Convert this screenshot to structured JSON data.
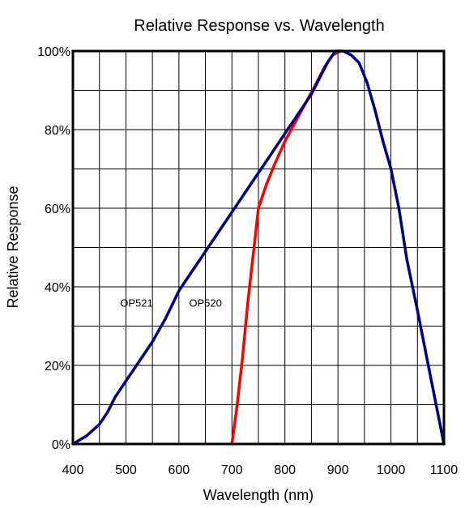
{
  "chart_data": {
    "type": "line",
    "title": "Relative Response vs. Wavelength",
    "xlabel": "Wavelength (nm)",
    "ylabel": "Relative Response",
    "xlim": [
      400,
      1100
    ],
    "ylim": [
      0,
      100
    ],
    "grid": true,
    "x_ticks": [
      400,
      500,
      600,
      700,
      800,
      900,
      1000,
      1100
    ],
    "x_tick_labels": [
      "400",
      "500",
      "600",
      "700",
      "800",
      "900",
      "1000",
      "1100"
    ],
    "y_ticks": [
      0,
      20,
      40,
      60,
      80,
      100
    ],
    "y_tick_labels": [
      "0%",
      "20%",
      "40%",
      "60%",
      "80%",
      "100%"
    ],
    "series": [
      {
        "name": "OP521",
        "color": "#000080",
        "points": [
          [
            400,
            0
          ],
          [
            425,
            2
          ],
          [
            450,
            5
          ],
          [
            465,
            8
          ],
          [
            480,
            12
          ],
          [
            500,
            16
          ],
          [
            525,
            21
          ],
          [
            550,
            26
          ],
          [
            575,
            32
          ],
          [
            600,
            39
          ],
          [
            625,
            44
          ],
          [
            650,
            49
          ],
          [
            675,
            54
          ],
          [
            700,
            59
          ],
          [
            725,
            64
          ],
          [
            750,
            69
          ],
          [
            775,
            74
          ],
          [
            800,
            79
          ],
          [
            825,
            84
          ],
          [
            850,
            89
          ],
          [
            865,
            93
          ],
          [
            880,
            97
          ],
          [
            895,
            100
          ],
          [
            910,
            100
          ],
          [
            925,
            99
          ],
          [
            940,
            97
          ],
          [
            955,
            92
          ],
          [
            970,
            85
          ],
          [
            985,
            77
          ],
          [
            1000,
            70
          ],
          [
            1015,
            60
          ],
          [
            1030,
            47
          ],
          [
            1050,
            34
          ],
          [
            1075,
            17
          ],
          [
            1100,
            0
          ]
        ]
      },
      {
        "name": "OP520",
        "color": "#ff0000",
        "points": [
          [
            700,
            0
          ],
          [
            710,
            10
          ],
          [
            720,
            22
          ],
          [
            730,
            36
          ],
          [
            740,
            48
          ],
          [
            750,
            60
          ],
          [
            765,
            66
          ],
          [
            780,
            71
          ],
          [
            800,
            77
          ],
          [
            820,
            82
          ],
          [
            840,
            87
          ],
          [
            860,
            92
          ],
          [
            875,
            96
          ],
          [
            890,
            99
          ],
          [
            905,
            100
          ]
        ]
      }
    ],
    "annotations": [
      {
        "text": "OP521",
        "x": 520,
        "y": 35
      },
      {
        "text": "OP520",
        "x": 650,
        "y": 35
      }
    ]
  }
}
